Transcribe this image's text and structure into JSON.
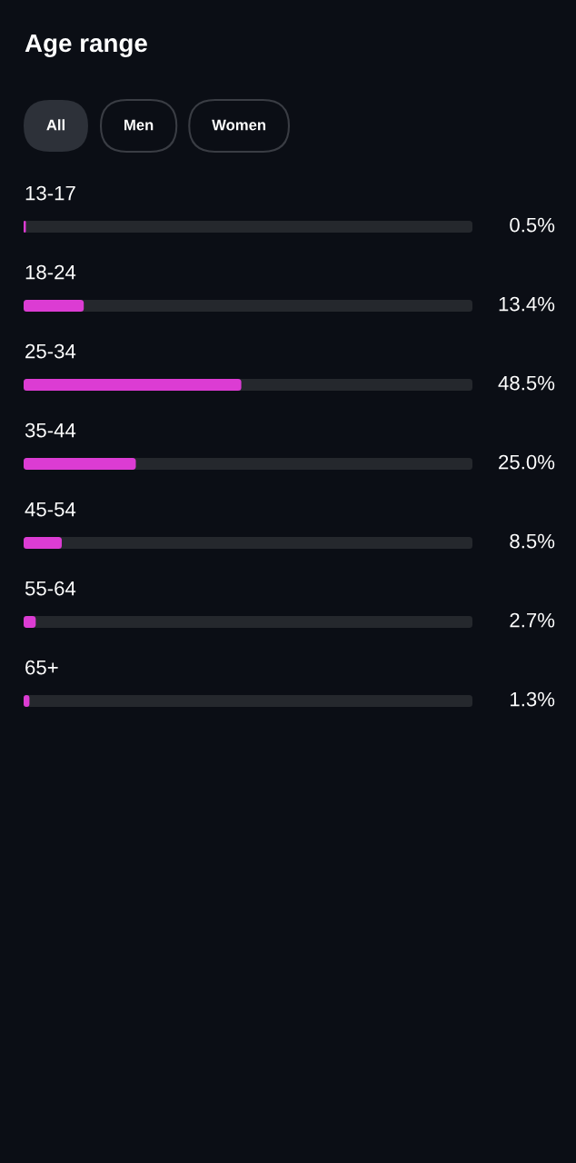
{
  "chart_data": {
    "type": "bar",
    "orientation": "horizontal",
    "title": "Age range",
    "annotations": [
      "All",
      "Men",
      "Women"
    ],
    "categories": [
      "13-17",
      "18-24",
      "25-34",
      "35-44",
      "45-54",
      "55-64",
      "65+"
    ],
    "values": [
      0.5,
      13.4,
      48.5,
      25.0,
      8.5,
      2.7,
      1.3
    ],
    "value_labels": [
      "0.5%",
      "13.4%",
      "48.5%",
      "25.0%",
      "8.5%",
      "2.7%",
      "1.3%"
    ],
    "color": "#dc3cd3",
    "xlim": [
      0,
      100
    ],
    "tick_labels": "y"
  }
}
